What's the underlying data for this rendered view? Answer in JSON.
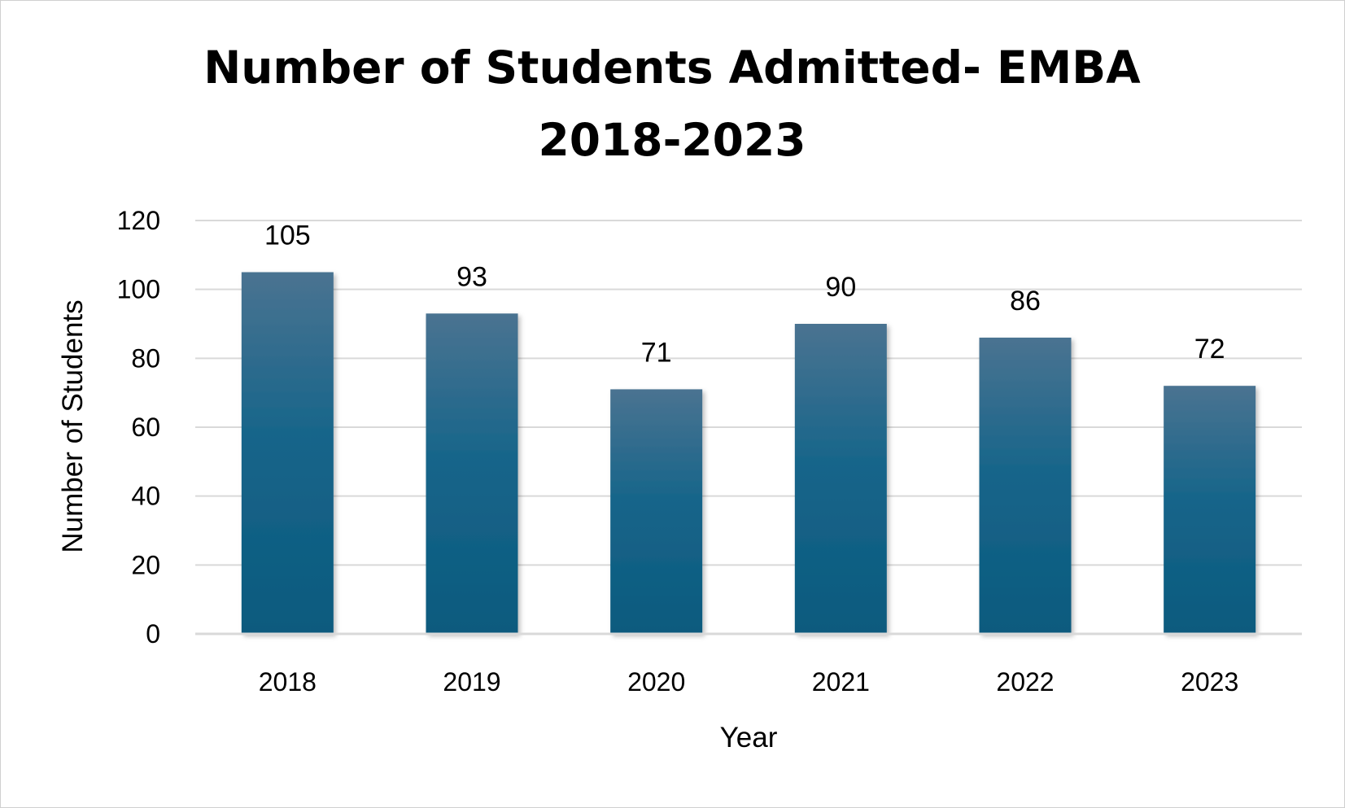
{
  "chart_data": {
    "type": "bar",
    "title": "Number of Students Admitted- EMBA",
    "subtitle": "2018-2023",
    "xlabel": "Year",
    "ylabel": "Number of Students",
    "categories": [
      "2018",
      "2019",
      "2020",
      "2021",
      "2022",
      "2023"
    ],
    "values": [
      105,
      93,
      71,
      90,
      86,
      72
    ],
    "ylim": [
      0,
      120
    ],
    "yticks": [
      0,
      20,
      40,
      60,
      80,
      100,
      120
    ],
    "grid": true,
    "legend": "none",
    "bar_color_top": "#4a7391",
    "bar_color_bottom": "#0b5a7e",
    "gridline_color": "#d9d9d9"
  }
}
